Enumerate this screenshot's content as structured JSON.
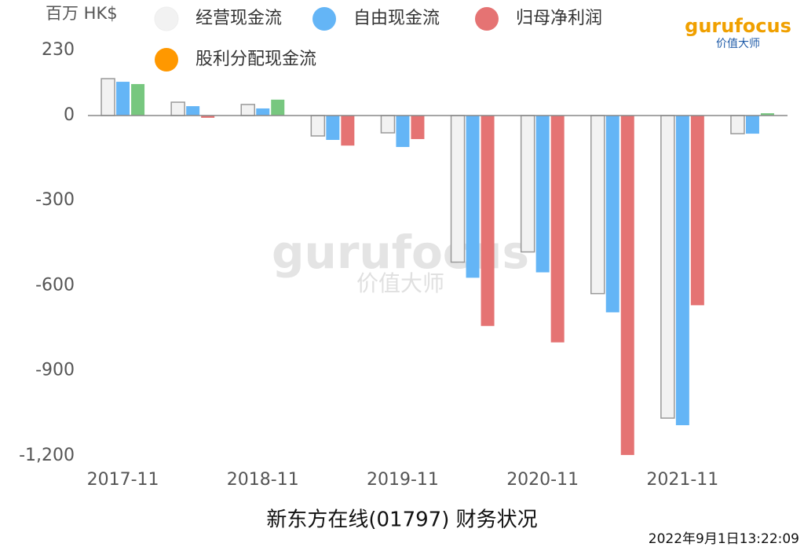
{
  "chart_data": {
    "type": "bar",
    "title": "新东方在线(01797) 财务状况",
    "y_unit": "百万 HK$",
    "timestamp": "2022年9月1日13:22:09",
    "logo": {
      "brand": "gurufocus",
      "tagline": "价值大师"
    },
    "categories": [
      "2017-11",
      null,
      "2018-11",
      null,
      "2019-11",
      null,
      "2020-11",
      null,
      "2021-11",
      null
    ],
    "series": [
      {
        "name": "经营现金流",
        "color": "#f2f2f2",
        "values": [
          130,
          47,
          39,
          -72,
          -61,
          -517,
          -481,
          -628,
          -1067,
          -64
        ]
      },
      {
        "name": "自由现金流",
        "color": "#64b5f6",
        "values": [
          119,
          33,
          25,
          -86,
          -111,
          -572,
          -553,
          -694,
          -1092,
          -64
        ]
      },
      {
        "name": "归母净利润",
        "color": "#e57373",
        "positive_color": "#77c77f",
        "values": [
          111,
          -8,
          56,
          -106,
          -83,
          -742,
          -800,
          -1197,
          -669,
          8
        ]
      },
      {
        "name": "股利分配现金流",
        "color": "#ff9800",
        "values": [
          null,
          null,
          null,
          null,
          null,
          null,
          null,
          null,
          null,
          null
        ]
      }
    ],
    "ylim": [
      -1200,
      230
    ],
    "yticks": [
      {
        "value": -1200,
        "label": "-1,200"
      },
      -900,
      -600,
      -300,
      0,
      230
    ]
  }
}
